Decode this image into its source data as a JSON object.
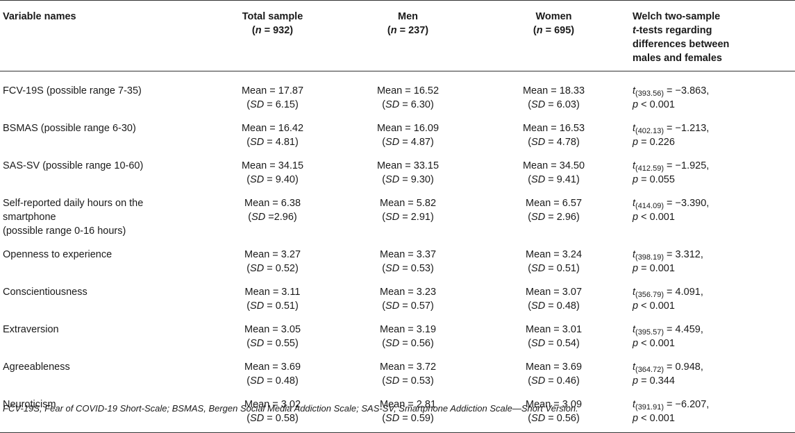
{
  "table": {
    "headers": {
      "variable": "Variable names",
      "total": {
        "label": "Total sample",
        "n_prefix": "(",
        "n_symbol": "n",
        "n_value": " = 932)"
      },
      "men": {
        "label": "Men",
        "n_prefix": "(",
        "n_symbol": "n",
        "n_value": " = 237)"
      },
      "women": {
        "label": "Women",
        "n_prefix": "(",
        "n_symbol": "n",
        "n_value": " = 695)"
      },
      "welch": {
        "line1": "Welch two-sample",
        "line2_italic": "t",
        "line2_rest": "-tests regarding",
        "line3": "differences between",
        "line4": "males and females"
      }
    },
    "rows": [
      {
        "variable": [
          "FCV-19S (possible range 7-35)"
        ],
        "total": {
          "mean": "Mean = 17.87",
          "sd": " = 6.15)"
        },
        "men": {
          "mean": "Mean = 16.52",
          "sd": " = 6.30)"
        },
        "women": {
          "mean": "Mean = 18.33",
          "sd": " = 6.03)"
        },
        "welch": {
          "df": "(393.56)",
          "t": " = −3.863,",
          "p": " < 0.001"
        }
      },
      {
        "variable": [
          "BSMAS (possible range 6-30)"
        ],
        "total": {
          "mean": "Mean = 16.42",
          "sd": " = 4.81)"
        },
        "men": {
          "mean": "Mean = 16.09",
          "sd": " = 4.87)"
        },
        "women": {
          "mean": "Mean = 16.53",
          "sd": " = 4.78)"
        },
        "welch": {
          "df": "(402.13)",
          "t": " = −1.213,",
          "p": " = 0.226"
        }
      },
      {
        "variable": [
          "SAS-SV (possible range 10-60)"
        ],
        "total": {
          "mean": "Mean = 34.15",
          "sd": " = 9.40)"
        },
        "men": {
          "mean": "Mean = 33.15",
          "sd": " = 9.30)"
        },
        "women": {
          "mean": "Mean = 34.50",
          "sd": " = 9.41)"
        },
        "welch": {
          "df": "(412.59)",
          "t": " = −1.925,",
          "p": " = 0.055"
        }
      },
      {
        "variable": [
          "Self-reported daily hours on the",
          "smartphone",
          "(possible range 0-16 hours)"
        ],
        "total": {
          "mean": "Mean = 6.38",
          "sd": " =2.96)"
        },
        "men": {
          "mean": "Mean = 5.82",
          "sd": " = 2.91)"
        },
        "women": {
          "mean": "Mean = 6.57",
          "sd": " = 2.96)"
        },
        "welch": {
          "df": "(414.09)",
          "t": " = −3.390,",
          "p": " < 0.001"
        }
      },
      {
        "variable": [
          "Openness to experience"
        ],
        "total": {
          "mean": "Mean = 3.27",
          "sd": " = 0.52)"
        },
        "men": {
          "mean": "Mean = 3.37",
          "sd": " = 0.53)"
        },
        "women": {
          "mean": "Mean = 3.24",
          "sd": " = 0.51)"
        },
        "welch": {
          "df": "(398.19)",
          "t": " = 3.312,",
          "p": " = 0.001"
        }
      },
      {
        "variable": [
          "Conscientiousness"
        ],
        "total": {
          "mean": "Mean = 3.11",
          "sd": " = 0.51)"
        },
        "men": {
          "mean": "Mean = 3.23",
          "sd": " = 0.57)"
        },
        "women": {
          "mean": "Mean = 3.07",
          "sd": " = 0.48)"
        },
        "welch": {
          "df": "(356.79)",
          "t": " = 4.091,",
          "p": " < 0.001"
        }
      },
      {
        "variable": [
          "Extraversion"
        ],
        "total": {
          "mean": "Mean = 3.05",
          "sd": " = 0.55)"
        },
        "men": {
          "mean": "Mean = 3.19",
          "sd": " = 0.56)"
        },
        "women": {
          "mean": "Mean = 3.01",
          "sd": " = 0.54)"
        },
        "welch": {
          "df": "(395.57)",
          "t": " = 4.459,",
          "p": " < 0.001"
        }
      },
      {
        "variable": [
          "Agreeableness"
        ],
        "total": {
          "mean": "Mean = 3.69",
          "sd": " = 0.48)"
        },
        "men": {
          "mean": "Mean = 3.72",
          "sd": " = 0.53)"
        },
        "women": {
          "mean": "Mean = 3.69",
          "sd": " = 0.46)"
        },
        "welch": {
          "df": "(364.72)",
          "t": " = 0.948,",
          "p": " = 0.344"
        }
      },
      {
        "variable": [
          "Neuroticism"
        ],
        "total": {
          "mean": "Mean = 3.02",
          "sd": " = 0.58)"
        },
        "men": {
          "mean": "Mean = 2.81",
          "sd": " = 0.59)"
        },
        "women": {
          "mean": "Mean = 3.09",
          "sd": " = 0.56)"
        },
        "welch": {
          "df": "(391.91)",
          "t": " = −6.207,",
          "p": " < 0.001"
        }
      }
    ],
    "symbols": {
      "sd": "SD",
      "t": "t",
      "p": "p",
      "open_paren": "("
    }
  },
  "footnote": "FCV-19S, Fear of COVID-19 Short-Scale; BSMAS, Bergen Social Media Addiction Scale; SAS-SV, Smartphone Addiction Scale—Short Version."
}
